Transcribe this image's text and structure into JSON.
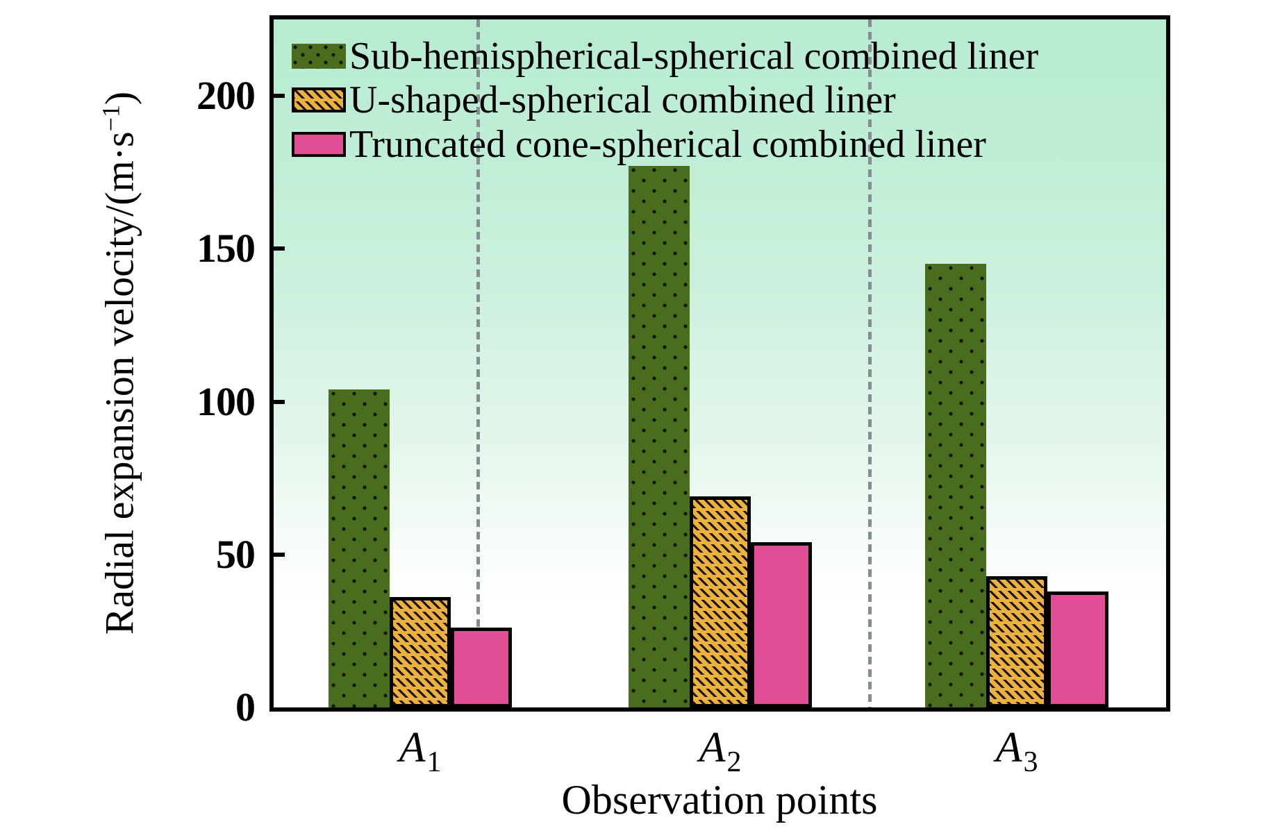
{
  "figure": {
    "y_axis": {
      "title_prefix": "Radial expansion velocity/(m·s",
      "title_sup": "−1",
      "title_suffix": ")",
      "tick_labels": [
        "0",
        "50",
        "100",
        "150",
        "200"
      ]
    },
    "x_axis": {
      "title": "Observation points",
      "categories": [
        {
          "base": "A",
          "sub": "1"
        },
        {
          "base": "A",
          "sub": "2"
        },
        {
          "base": "A",
          "sub": "3"
        }
      ]
    },
    "legend": [
      {
        "label": "Sub-hemispherical-spherical combined liner",
        "swatch": "green-dotted"
      },
      {
        "label": "U-shaped-spherical combined liner",
        "swatch": "orange-hatched"
      },
      {
        "label": "Truncated cone-spherical combined liner",
        "swatch": "pink-solid"
      }
    ],
    "colors": {
      "green_bar": "#4a6c1d",
      "orange_bar": "#ecb23e",
      "pink_bar": "#e04f95",
      "plot_background_top": "#b7ecd1",
      "plot_background_bottom": "#ffffff",
      "dashed_separator": "#838d92",
      "frame": "#000000"
    }
  },
  "chart_data": {
    "type": "bar",
    "categories": [
      "A1",
      "A2",
      "A3"
    ],
    "series": [
      {
        "name": "Sub-hemispherical-spherical combined liner",
        "values": [
          104,
          177,
          145
        ]
      },
      {
        "name": "U-shaped-spherical combined liner",
        "values": [
          36,
          69,
          43
        ]
      },
      {
        "name": "Truncated cone-spherical combined liner",
        "values": [
          26,
          54,
          38
        ]
      }
    ],
    "title": "",
    "xlabel": "Observation points",
    "ylabel": "Radial expansion velocity/(m·s−1)",
    "ylim": [
      0,
      225
    ],
    "yticks": [
      0,
      50,
      100,
      150,
      200
    ],
    "grid": "two vertical gray dashed separator lines between category groups",
    "legend_position": "top-left inside plot area"
  }
}
